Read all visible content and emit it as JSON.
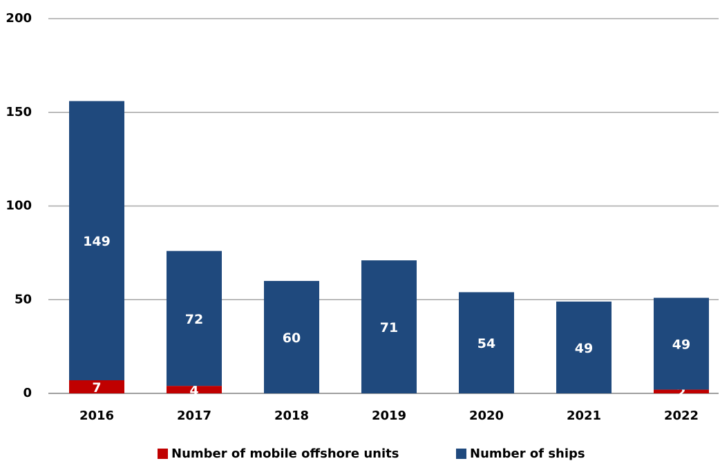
{
  "chart_data": {
    "type": "bar",
    "stacked": true,
    "categories": [
      "2016",
      "2017",
      "2018",
      "2019",
      "2020",
      "2021",
      "2022"
    ],
    "series": [
      {
        "name": "Number of mobile offshore units",
        "color": "#c00000",
        "values": [
          7,
          4,
          0,
          0,
          0,
          0,
          2
        ]
      },
      {
        "name": "Number of ships",
        "color": "#1f497d",
        "values": [
          149,
          72,
          60,
          71,
          54,
          49,
          49
        ]
      }
    ],
    "ylim": [
      0,
      200
    ],
    "yticks": [
      0,
      50,
      100,
      150,
      200
    ],
    "grid": true
  }
}
